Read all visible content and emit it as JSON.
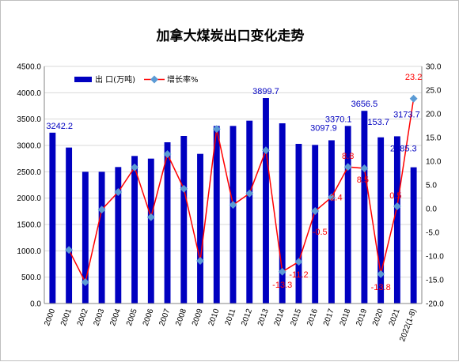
{
  "chart_data": {
    "type": "bar",
    "title": "加拿大煤炭出口变化走势",
    "categories": [
      "2000",
      "2001",
      "2002",
      "2003",
      "2004",
      "2005",
      "2006",
      "2007",
      "2008",
      "2009",
      "2010",
      "2011",
      "2012",
      "2013",
      "2014",
      "2015",
      "2016",
      "2017",
      "2018",
      "2019",
      "2020",
      "2021",
      "2022(1-8)"
    ],
    "series": [
      {
        "name": "出 口(万吨)",
        "type": "bar",
        "axis": "left",
        "color": "#0000c0",
        "values": [
          3242.2,
          2960,
          2500,
          2500,
          2590,
          2800,
          2750,
          3060,
          3180,
          2840,
          3370,
          3370,
          3470,
          3899.7,
          3420,
          3030,
          3010,
          3097.9,
          3370.1,
          3656.5,
          3153.7,
          3173.7,
          2585.3
        ]
      },
      {
        "name": "增长率%",
        "type": "line",
        "axis": "right",
        "color": "#ff0000",
        "marker_color": "#5b9bd5",
        "values": [
          null,
          -8.7,
          -15.5,
          -0.2,
          3.5,
          8.7,
          -1.8,
          11.5,
          4.2,
          -11.0,
          16.8,
          0.8,
          3.2,
          12.3,
          -13.3,
          -11.2,
          -0.5,
          2.4,
          8.8,
          8.5,
          -13.8,
          0.5,
          23.2
        ]
      }
    ],
    "bar_labels": [
      {
        "index": 0,
        "text": "3242.2"
      },
      {
        "index": 13,
        "text": "3899.7"
      },
      {
        "index": 17,
        "text": "3097.9"
      },
      {
        "index": 18,
        "text": "3370.1"
      },
      {
        "index": 19,
        "text": "3656.5"
      },
      {
        "index": 20,
        "text": "3153.7"
      },
      {
        "index": 21,
        "text": "3173.7"
      },
      {
        "index": 22,
        "text": "2585.3"
      }
    ],
    "rate_labels": [
      {
        "index": 14,
        "text": "-13.3"
      },
      {
        "index": 15,
        "text": "-11.2"
      },
      {
        "index": 16,
        "text": "-0.5"
      },
      {
        "index": 17,
        "text": "2.4"
      },
      {
        "index": 18,
        "text": "8.8"
      },
      {
        "index": 19,
        "text": "8.5"
      },
      {
        "index": 20,
        "text": "-13.8"
      },
      {
        "index": 21,
        "text": "0.5"
      },
      {
        "index": 22,
        "text": "23.2"
      }
    ],
    "left_axis": {
      "ylim": [
        0,
        4500
      ],
      "ticks": [
        "0.0",
        "500.0",
        "1000.0",
        "1500.0",
        "2000.0",
        "2500.0",
        "3000.0",
        "3500.0",
        "4000.0",
        "4500.0"
      ]
    },
    "right_axis": {
      "ylim": [
        -20,
        30
      ],
      "ticks": [
        "-20.0",
        "-15.0",
        "-10.0",
        "-5.0",
        "0.0",
        "5.0",
        "10.0",
        "15.0",
        "20.0",
        "25.0",
        "30.0"
      ]
    },
    "grid": true,
    "legend_position": "top-left"
  }
}
